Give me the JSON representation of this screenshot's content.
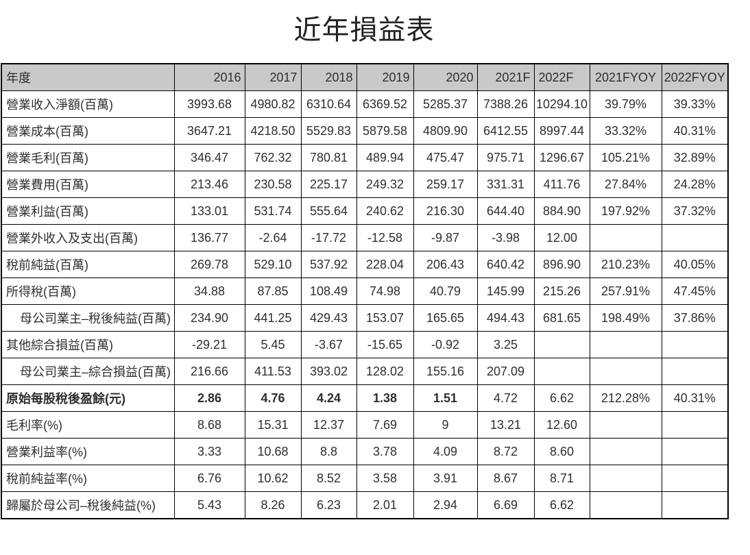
{
  "page": {
    "title": "近年損益表"
  },
  "style": {
    "header_bg": "#c9c9c9",
    "border_color": "#000000",
    "text_color": "#2e2e2e"
  },
  "chart_data": {
    "type": "table",
    "title": "近年損益表",
    "columns": [
      "年度",
      "2016",
      "2017",
      "2018",
      "2019",
      "2020",
      "2021F",
      "2022F",
      "2021FYOY",
      "2022FYOY"
    ],
    "rows": [
      {
        "label": "營業收入淨額(百萬)",
        "values": [
          "3993.68",
          "4980.82",
          "6310.64",
          "6369.52",
          "5285.37",
          "7388.26",
          "10294.10",
          "39.79%",
          "39.33%"
        ]
      },
      {
        "label": "營業成本(百萬)",
        "values": [
          "3647.21",
          "4218.50",
          "5529.83",
          "5879.58",
          "4809.90",
          "6412.55",
          "8997.44",
          "33.32%",
          "40.31%"
        ]
      },
      {
        "label": "營業毛利(百萬)",
        "values": [
          "346.47",
          "762.32",
          "780.81",
          "489.94",
          "475.47",
          "975.71",
          "1296.67",
          "105.21%",
          "32.89%"
        ]
      },
      {
        "label": "營業費用(百萬)",
        "values": [
          "213.46",
          "230.58",
          "225.17",
          "249.32",
          "259.17",
          "331.31",
          "411.76",
          "27.84%",
          "24.28%"
        ]
      },
      {
        "label": "營業利益(百萬)",
        "values": [
          "133.01",
          "531.74",
          "555.64",
          "240.62",
          "216.30",
          "644.40",
          "884.90",
          "197.92%",
          "37.32%"
        ]
      },
      {
        "label": "營業外收入及支出(百萬)",
        "values": [
          "136.77",
          "-2.64",
          "-17.72",
          "-12.58",
          "-9.87",
          "-3.98",
          "12.00",
          "",
          ""
        ]
      },
      {
        "label": "稅前純益(百萬)",
        "values": [
          "269.78",
          "529.10",
          "537.92",
          "228.04",
          "206.43",
          "640.42",
          "896.90",
          "210.23%",
          "40.05%"
        ]
      },
      {
        "label": "所得稅(百萬)",
        "values": [
          "34.88",
          "87.85",
          "108.49",
          "74.98",
          "40.79",
          "145.99",
          "215.26",
          "257.91%",
          "47.45%"
        ]
      },
      {
        "label": "母公司業主–稅後純益(百萬)",
        "indent": true,
        "values": [
          "234.90",
          "441.25",
          "429.43",
          "153.07",
          "165.65",
          "494.43",
          "681.65",
          "198.49%",
          "37.86%"
        ]
      },
      {
        "label": "其他綜合損益(百萬)",
        "values": [
          "-29.21",
          "5.45",
          "-3.67",
          "-15.65",
          "-0.92",
          "3.25",
          "",
          "",
          ""
        ]
      },
      {
        "label": "母公司業主–綜合損益(百萬)",
        "indent": true,
        "values": [
          "216.66",
          "411.53",
          "393.02",
          "128.02",
          "155.16",
          "207.09",
          "",
          "",
          ""
        ]
      },
      {
        "label": "原始每股稅後盈餘(元)",
        "bold_label": true,
        "bold_values": 5,
        "values": [
          "2.86",
          "4.76",
          "4.24",
          "1.38",
          "1.51",
          "4.72",
          "6.62",
          "212.28%",
          "40.31%"
        ]
      },
      {
        "label": "毛利率(%)",
        "values": [
          "8.68",
          "15.31",
          "12.37",
          "7.69",
          "9",
          "13.21",
          "12.60",
          "",
          ""
        ]
      },
      {
        "label": "營業利益率(%)",
        "values": [
          "3.33",
          "10.68",
          "8.8",
          "3.78",
          "4.09",
          "8.72",
          "8.60",
          "",
          ""
        ]
      },
      {
        "label": "稅前純益率(%)",
        "values": [
          "6.76",
          "10.62",
          "8.52",
          "3.58",
          "3.91",
          "8.67",
          "8.71",
          "",
          ""
        ]
      },
      {
        "label": "歸屬於母公司–稅後純益(%)",
        "values": [
          "5.43",
          "8.26",
          "6.23",
          "2.01",
          "2.94",
          "6.69",
          "6.62",
          "",
          ""
        ]
      }
    ]
  }
}
